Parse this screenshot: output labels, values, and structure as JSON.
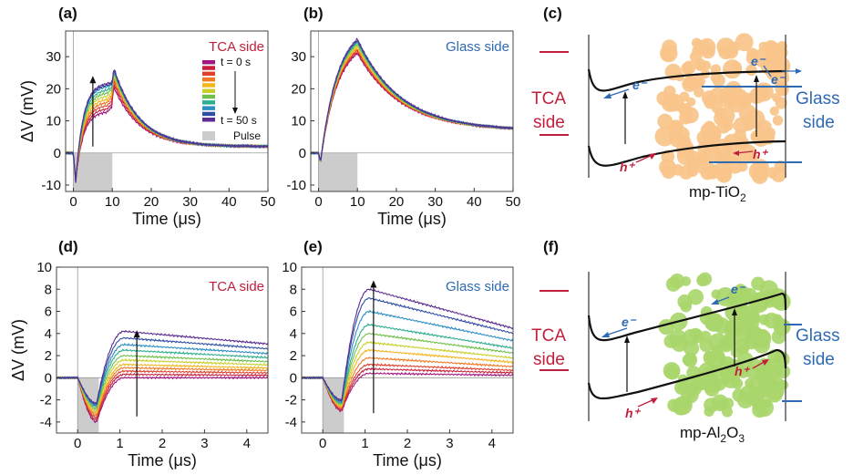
{
  "colors": {
    "tca_red": "#c0203c",
    "glass_blue": "#2f6ab3",
    "tio2_particle": "#f9c48a",
    "al2o3_particle": "#a9d66b",
    "pulse_gray": "#cccccc",
    "series_gradient": [
      "#a0157f",
      "#c7203c",
      "#e0402a",
      "#f07a23",
      "#f2b51c",
      "#c8cf2a",
      "#6fbf4a",
      "#2fae8f",
      "#2d8fc4",
      "#2e4ea3",
      "#5b2d8f"
    ]
  },
  "panel_labels": {
    "a": "(a)",
    "b": "(b)",
    "c": "(c)",
    "d": "(d)",
    "e": "(e)",
    "f": "(f)"
  },
  "text": {
    "ylabel": "ΔV (mV)",
    "xlabel": "Time (μs)",
    "tca_side": "TCA side",
    "glass_side": "Glass side",
    "legend_t0": "t = 0 s",
    "legend_t50": "t = 50 s",
    "legend_pulse": "Pulse"
  },
  "diagram_c": {
    "left_label_1": "TCA",
    "left_label_2": "side",
    "right_label_1": "Glass",
    "right_label_2": "side",
    "material": "mp-TiO",
    "material_sub": "2",
    "electron_label": "e⁻",
    "hole_label": "h⁺"
  },
  "diagram_f": {
    "left_label_1": "TCA",
    "left_label_2": "side",
    "right_label_1": "Glass",
    "right_label_2": "side",
    "material_a": "mp-Al",
    "material_sub1": "2",
    "material_b": "O",
    "material_sub2": "3",
    "electron_label": "e⁻",
    "hole_label": "h⁺"
  },
  "chart_data": [
    {
      "id": "a",
      "type": "line",
      "xlim": [
        -2,
        50
      ],
      "ylim": [
        -12,
        38
      ],
      "xticks": [
        0,
        10,
        20,
        30,
        40,
        50
      ],
      "yticks": [
        -10,
        0,
        10,
        20,
        30
      ],
      "xlabel": "Time (μs)",
      "ylabel": "ΔV (mV)",
      "annotation": "TCA side",
      "pulse": [
        0,
        10
      ],
      "legend": {
        "entries": [
          "t = 0 s",
          "t = 50 s",
          "Pulse"
        ],
        "placement": "top-right"
      },
      "series_count": 11,
      "peak_at_pulse_end": [
        20.5,
        21.5,
        22.5,
        23.5,
        24,
        24.5,
        25,
        25.5,
        26,
        26,
        26.5
      ],
      "plateau_before_pulse_end": [
        13,
        14,
        15,
        16,
        17,
        18,
        19,
        20,
        21,
        21.5,
        22
      ],
      "tail_at_50": 2
    },
    {
      "id": "b",
      "type": "line",
      "xlim": [
        -2,
        50
      ],
      "ylim": [
        -12,
        38
      ],
      "xticks": [
        0,
        10,
        20,
        30,
        40,
        50
      ],
      "yticks": [
        -10,
        0,
        10,
        20,
        30
      ],
      "xlabel": "Time (μs)",
      "ylabel": "",
      "annotation": "Glass side",
      "pulse": [
        0,
        10
      ],
      "series_count": 11,
      "peak_at_pulse_end": [
        31,
        31.5,
        32,
        32.5,
        33,
        33.5,
        34,
        34.5,
        35,
        35,
        35.5
      ],
      "tail_at_50": 7
    },
    {
      "id": "d",
      "type": "line",
      "xlim": [
        -0.5,
        4.5
      ],
      "ylim": [
        -5,
        10
      ],
      "xticks": [
        0,
        1,
        2,
        3,
        4
      ],
      "yticks": [
        -4,
        -2,
        0,
        2,
        4,
        6,
        8,
        10
      ],
      "xlabel": "Time (μs)",
      "ylabel": "ΔV (mV)",
      "annotation": "TCA side",
      "pulse": [
        0,
        0.5
      ],
      "series_count": 11,
      "plateau_levels": [
        0.0,
        0.3,
        0.6,
        0.9,
        1.2,
        1.6,
        2.0,
        2.5,
        3.0,
        3.6,
        4.2
      ],
      "dip_levels": [
        -4.0,
        -3.8,
        -3.6,
        -3.4,
        -3.2,
        -3.0,
        -2.8,
        -2.6,
        -2.5,
        -2.4,
        -2.3
      ]
    },
    {
      "id": "e",
      "type": "line",
      "xlim": [
        -0.5,
        4.5
      ],
      "ylim": [
        -5,
        10
      ],
      "xticks": [
        0,
        1,
        2,
        3,
        4
      ],
      "yticks": [
        -4,
        -2,
        0,
        2,
        4,
        6,
        8,
        10
      ],
      "xlabel": "Time (μs)",
      "ylabel": "",
      "annotation": "Glass side",
      "pulse": [
        0,
        0.5
      ],
      "series_count": 11,
      "plateau_levels": [
        0.4,
        0.8,
        1.2,
        1.8,
        2.5,
        3.2,
        4.0,
        4.8,
        6.0,
        7.2,
        8.0
      ],
      "dip_levels": [
        -3.0,
        -2.9,
        -2.8,
        -2.7,
        -2.6,
        -2.5,
        -2.4,
        -2.3,
        -2.2,
        -2.1,
        -2.0
      ]
    }
  ]
}
